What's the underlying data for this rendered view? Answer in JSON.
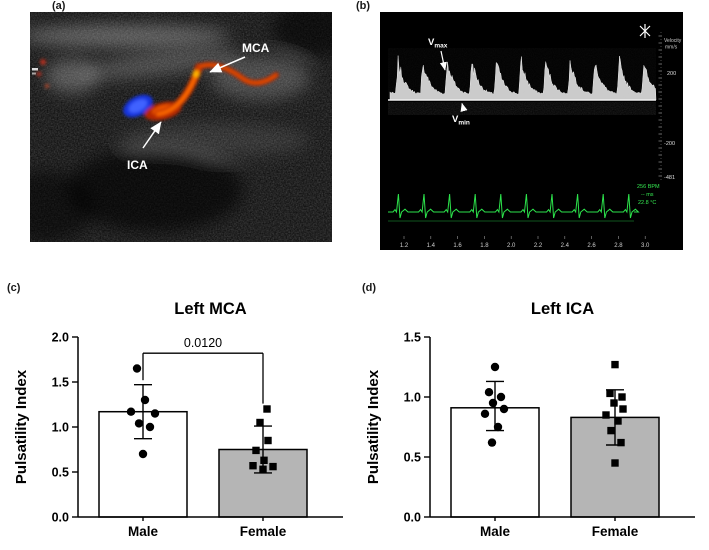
{
  "panels": {
    "a": {
      "label": "(a)",
      "mca_label": "MCA",
      "ica_label": "ICA"
    },
    "b": {
      "label": "(b)",
      "vmax_base": "V",
      "vmax_sub": "max",
      "vmin_base": "V",
      "vmin_sub": "min",
      "velocity_label_line1": "Velocity",
      "velocity_label_line2": "mm/s",
      "scale_ticks": [
        "200",
        "-200",
        "-481"
      ],
      "time_ticks": [
        "1.2",
        "1.4",
        "1.6",
        "1.8",
        "2.0",
        "2.2",
        "2.4",
        "2.6",
        "2.8",
        "3.0"
      ],
      "ecg_readouts": [
        "256 BPM",
        "-- ms",
        "22.8 °C"
      ]
    },
    "c": {
      "label": "(c)"
    },
    "d": {
      "label": "(d)"
    }
  },
  "chart_data": [
    {
      "type": "bar",
      "panel": "c",
      "svg_id": "chart-c",
      "title": "Left MCA",
      "ylabel": "Pulsatility Index",
      "xlabel": "",
      "ylim": [
        0,
        2.0
      ],
      "yticks": [
        0,
        0.5,
        1.0,
        1.5,
        2.0
      ],
      "categories": [
        "Male",
        "Female"
      ],
      "grid": false,
      "legend": "none",
      "series": [
        {
          "name": "Male",
          "mean": 1.17,
          "sd_low": 0.87,
          "sd_high": 1.47,
          "bar_fill": "#ffffff",
          "marker": "circle",
          "points": [
            [
              1.65,
              -6
            ],
            [
              1.3,
              2
            ],
            [
              1.17,
              -12
            ],
            [
              1.15,
              12
            ],
            [
              1.04,
              -4
            ],
            [
              1.0,
              7
            ],
            [
              0.7,
              0
            ]
          ]
        },
        {
          "name": "Female",
          "mean": 0.75,
          "sd_low": 0.49,
          "sd_high": 1.01,
          "bar_fill": "#b5b5b5",
          "marker": "square",
          "points": [
            [
              1.2,
              4
            ],
            [
              1.05,
              -3
            ],
            [
              0.85,
              5
            ],
            [
              0.74,
              -7
            ],
            [
              0.63,
              1
            ],
            [
              0.57,
              -10
            ],
            [
              0.56,
              10
            ],
            [
              0.53,
              0
            ]
          ]
        }
      ],
      "significance": {
        "label": "0.0120",
        "y": 1.82,
        "drop_left": 0.3,
        "drop_right": 0.56
      }
    },
    {
      "type": "bar",
      "panel": "d",
      "svg_id": "chart-d",
      "title": "Left ICA",
      "ylabel": "Pulsatility Index",
      "xlabel": "",
      "ylim": [
        0,
        1.5
      ],
      "yticks": [
        0,
        0.5,
        1.0,
        1.5
      ],
      "categories": [
        "Male",
        "Female"
      ],
      "grid": false,
      "legend": "none",
      "series": [
        {
          "name": "Male",
          "mean": 0.91,
          "sd_low": 0.72,
          "sd_high": 1.13,
          "bar_fill": "#ffffff",
          "marker": "circle",
          "points": [
            [
              1.25,
              0
            ],
            [
              1.04,
              -6
            ],
            [
              1.0,
              6
            ],
            [
              0.95,
              -2
            ],
            [
              0.9,
              9
            ],
            [
              0.86,
              -10
            ],
            [
              0.75,
              3
            ],
            [
              0.62,
              -3
            ]
          ]
        },
        {
          "name": "Female",
          "mean": 0.83,
          "sd_low": 0.6,
          "sd_high": 1.06,
          "bar_fill": "#b5b5b5",
          "marker": "square",
          "points": [
            [
              1.27,
              0
            ],
            [
              1.03,
              -5
            ],
            [
              1.0,
              7
            ],
            [
              0.95,
              -1
            ],
            [
              0.9,
              8
            ],
            [
              0.85,
              -9
            ],
            [
              0.8,
              3
            ],
            [
              0.72,
              -4
            ],
            [
              0.62,
              6
            ],
            [
              0.45,
              0
            ]
          ]
        }
      ]
    }
  ]
}
